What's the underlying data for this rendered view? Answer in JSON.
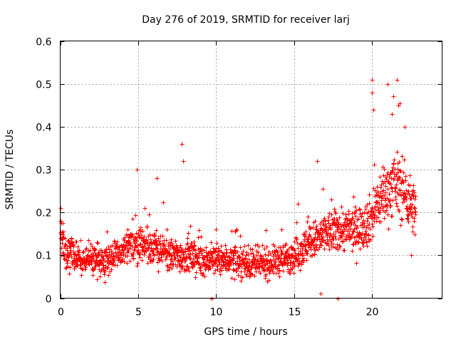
{
  "chart_data": {
    "type": "scatter",
    "title": "Day 276 of 2019, SRMTID for receiver larj",
    "xlabel": "GPS time / hours",
    "ylabel": "SRMTID / TECUs",
    "xlim": [
      0,
      24.5
    ],
    "ylim": [
      0,
      0.6
    ],
    "xticks": [
      0,
      5,
      10,
      15,
      20
    ],
    "xtick_labels": [
      "0",
      "5",
      "10",
      "15",
      "20"
    ],
    "yticks": [
      0,
      0.1,
      0.2,
      0.3,
      0.4,
      0.5,
      0.6
    ],
    "ytick_labels": [
      "0",
      "0.1",
      "0.2",
      "0.3",
      "0.4",
      "0.5",
      "0.6"
    ],
    "grid": true,
    "marker": "+",
    "series": [
      {
        "name": "SRMTID",
        "color": "#ff0000",
        "trend": {
          "x": [
            0.0,
            0.5,
            1.5,
            2.5,
            3.0,
            4.0,
            5.0,
            6.0,
            7.0,
            8.0,
            9.0,
            10.0,
            11.0,
            12.0,
            13.0,
            14.0,
            15.0,
            16.0,
            17.0,
            18.0,
            19.0,
            19.8,
            20.5,
            21.0,
            21.5,
            22.0,
            22.5,
            22.8
          ],
          "y": [
            0.14,
            0.1,
            0.09,
            0.09,
            0.09,
            0.11,
            0.13,
            0.12,
            0.1,
            0.1,
            0.09,
            0.09,
            0.09,
            0.08,
            0.08,
            0.09,
            0.1,
            0.13,
            0.15,
            0.16,
            0.16,
            0.18,
            0.23,
            0.25,
            0.27,
            0.25,
            0.22,
            0.2
          ]
        },
        "notable_points": [
          {
            "x": 0.0,
            "y": 0.21
          },
          {
            "x": 4.9,
            "y": 0.3
          },
          {
            "x": 6.2,
            "y": 0.28
          },
          {
            "x": 7.8,
            "y": 0.36
          },
          {
            "x": 7.9,
            "y": 0.32
          },
          {
            "x": 16.5,
            "y": 0.32
          },
          {
            "x": 16.7,
            "y": 0.01
          },
          {
            "x": 9.7,
            "y": 0.0
          },
          {
            "x": 17.8,
            "y": 0.0
          },
          {
            "x": 20.0,
            "y": 0.51
          },
          {
            "x": 20.0,
            "y": 0.48
          },
          {
            "x": 20.1,
            "y": 0.44
          },
          {
            "x": 21.0,
            "y": 0.5
          },
          {
            "x": 21.3,
            "y": 0.43
          },
          {
            "x": 21.6,
            "y": 0.51
          },
          {
            "x": 21.7,
            "y": 0.45
          },
          {
            "x": 22.1,
            "y": 0.4
          },
          {
            "x": 22.5,
            "y": 0.1
          }
        ]
      }
    ]
  }
}
